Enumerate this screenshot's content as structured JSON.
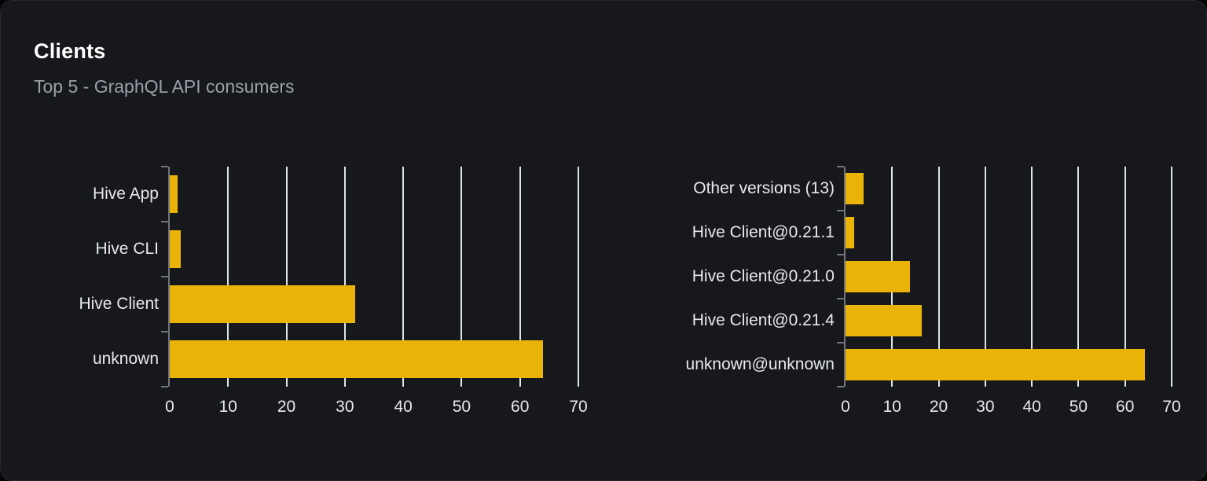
{
  "card": {
    "title": "Clients",
    "subtitle": "Top 5 - GraphQL API consumers"
  },
  "colors": {
    "bar": "#eab308",
    "card_background": "#16181c",
    "page_background": "#050507",
    "gridline": "#dfe3ea",
    "axis": "#71747b",
    "tick_label": "#e7e9ec",
    "title": "#ffffff",
    "subtitle": "#9aa0a9"
  },
  "chart_data": [
    {
      "type": "bar",
      "orientation": "horizontal",
      "title": "Clients by name",
      "categories": [
        "Hive App",
        "Hive CLI",
        "Hive Client",
        "unknown"
      ],
      "values": [
        1.3,
        1.9,
        31.8,
        64.0
      ],
      "xlim": [
        0,
        70
      ],
      "xticks": [
        0,
        10,
        20,
        30,
        40,
        50,
        60,
        70
      ],
      "grid": true,
      "legend": "none"
    },
    {
      "type": "bar",
      "orientation": "horizontal",
      "title": "Clients by version",
      "categories": [
        "Other versions (13)",
        "Hive Client@0.21.1",
        "Hive Client@0.21.0",
        "Hive Client@0.21.4",
        "unknown@unknown"
      ],
      "values": [
        3.9,
        1.8,
        13.8,
        16.4,
        64.2
      ],
      "xlim": [
        0,
        70
      ],
      "xticks": [
        0,
        10,
        20,
        30,
        40,
        50,
        60,
        70
      ],
      "grid": true,
      "legend": "none"
    }
  ]
}
